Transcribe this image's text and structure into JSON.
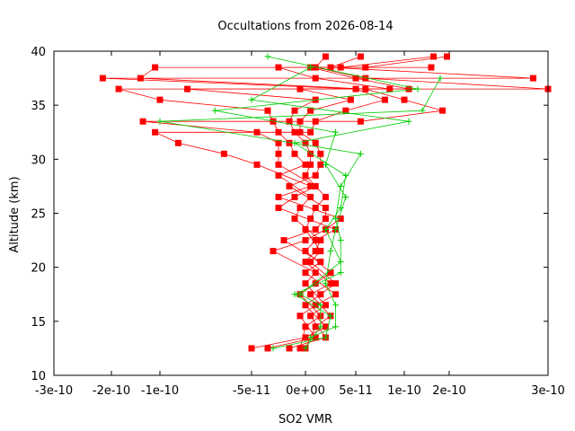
{
  "chart_data": {
    "type": "scatter",
    "title": "Occultations from 2026-08-14",
    "xlabel": "SO2 VMR",
    "ylabel": "Altitude (km)",
    "xlim": [
      -3e-10,
      3e-10
    ],
    "ylim": [
      10,
      40
    ],
    "x_ticks": [
      -3e-10,
      -2e-10,
      -1e-10,
      -5e-11,
      0,
      5e-11,
      1e-10,
      2e-10,
      3e-10
    ],
    "x_tick_labels": [
      "-3e-10",
      "-2e-10",
      "-1e-10",
      "-5e-11",
      "0e+00",
      "5e-11",
      "1e-10",
      "2e-10",
      "3e-10"
    ],
    "y_ticks": [
      10,
      15,
      20,
      25,
      30,
      35,
      40
    ],
    "y_tick_labels": [
      "10",
      "15",
      "20",
      "25",
      "30",
      "35",
      "40"
    ],
    "grid": false,
    "legend": "none",
    "series": [
      {
        "color": "#ff0000",
        "marker": "square",
        "points": [
          [
            -5e-11,
            12.5
          ],
          [
            -3.5e-11,
            12.5
          ],
          [
            -1.5e-11,
            12.5
          ],
          [
            -5e-12,
            12.5
          ],
          [
            0,
            12.5
          ],
          [
            0,
            13.5
          ],
          [
            1e-11,
            13.5
          ],
          [
            2e-11,
            13.5
          ],
          [
            0,
            14.5
          ],
          [
            1e-11,
            14.5
          ],
          [
            2e-11,
            14.5
          ],
          [
            -5e-12,
            15.5
          ],
          [
            5e-12,
            15.5
          ],
          [
            1.5e-11,
            15.5
          ],
          [
            2.5e-11,
            15.5
          ],
          [
            0,
            16.5
          ],
          [
            1e-11,
            16.5
          ],
          [
            2e-11,
            16.5
          ],
          [
            -5e-12,
            17.5
          ],
          [
            5e-12,
            17.5
          ],
          [
            1.5e-11,
            17.5
          ],
          [
            3e-11,
            17.5
          ],
          [
            0,
            18.5
          ],
          [
            1e-11,
            18.5
          ],
          [
            2.5e-11,
            18.5
          ],
          [
            3e-11,
            18.5
          ],
          [
            0,
            19.5
          ],
          [
            1e-11,
            19.5
          ],
          [
            2.5e-11,
            19.5
          ],
          [
            0,
            20.5
          ],
          [
            5e-12,
            20.5
          ],
          [
            1.5e-11,
            20.5
          ],
          [
            -3e-11,
            21.5
          ],
          [
            0,
            21.5
          ],
          [
            1e-11,
            21.5
          ],
          [
            1.5e-11,
            21.5
          ],
          [
            -2e-11,
            22.5
          ],
          [
            0,
            22.5
          ],
          [
            1e-11,
            22.5
          ],
          [
            1.5e-11,
            22.5
          ],
          [
            0,
            23.5
          ],
          [
            1e-11,
            23.5
          ],
          [
            2e-11,
            23.5
          ],
          [
            3e-11,
            23.5
          ],
          [
            -1e-11,
            24.5
          ],
          [
            5e-12,
            24.5
          ],
          [
            2e-11,
            24.5
          ],
          [
            3.5e-11,
            24.5
          ],
          [
            -2.5e-11,
            25.5
          ],
          [
            -5e-12,
            25.5
          ],
          [
            1e-11,
            25.5
          ],
          [
            2e-11,
            25.5
          ],
          [
            -2.5e-11,
            26.5
          ],
          [
            -1e-11,
            26.5
          ],
          [
            5e-12,
            26.5
          ],
          [
            2e-11,
            26.5
          ],
          [
            -1.5e-11,
            27.5
          ],
          [
            5e-12,
            27.5
          ],
          [
            1e-11,
            27.5
          ],
          [
            -2.5e-11,
            28.5
          ],
          [
            0,
            28.5
          ],
          [
            1e-11,
            28.5
          ],
          [
            -4.5e-11,
            29.5
          ],
          [
            -2.5e-11,
            29.5
          ],
          [
            0,
            29.5
          ],
          [
            5e-12,
            29.5
          ],
          [
            1.5e-11,
            29.5
          ],
          [
            -6.5e-11,
            30.5
          ],
          [
            -2.5e-11,
            30.5
          ],
          [
            -1e-11,
            30.5
          ],
          [
            5e-12,
            30.5
          ],
          [
            1.5e-11,
            30.5
          ],
          [
            -9e-11,
            31.5
          ],
          [
            -2.5e-11,
            31.5
          ],
          [
            -1.5e-11,
            31.5
          ],
          [
            0,
            31.5
          ],
          [
            1e-11,
            31.5
          ],
          [
            -1.1e-10,
            32.5
          ],
          [
            -4.5e-11,
            32.5
          ],
          [
            -2.5e-11,
            32.5
          ],
          [
            -1e-11,
            32.5
          ],
          [
            -5e-12,
            32.5
          ],
          [
            5e-12,
            32.5
          ],
          [
            -1.35e-10,
            33.5
          ],
          [
            -3e-11,
            33.5
          ],
          [
            -1.5e-11,
            33.5
          ],
          [
            -5e-12,
            33.5
          ],
          [
            1e-11,
            33.5
          ],
          [
            5.5e-11,
            33.5
          ],
          [
            -3.5e-11,
            34.5
          ],
          [
            -1e-11,
            34.5
          ],
          [
            5e-12,
            34.5
          ],
          [
            4e-11,
            34.5
          ],
          [
            1.85e-10,
            34.5
          ],
          [
            -1e-10,
            35.5
          ],
          [
            1e-11,
            35.5
          ],
          [
            4.5e-11,
            35.5
          ],
          [
            8e-11,
            35.5
          ],
          [
            1e-10,
            35.5
          ],
          [
            -1.85e-10,
            36.5
          ],
          [
            -8.5e-11,
            36.5
          ],
          [
            -5e-12,
            36.5
          ],
          [
            5e-11,
            36.5
          ],
          [
            6e-11,
            36.5
          ],
          [
            8.5e-11,
            36.5
          ],
          [
            1.1e-10,
            36.5
          ],
          [
            3e-10,
            36.5
          ],
          [
            -2.15e-10,
            37.5
          ],
          [
            -1.4e-10,
            37.5
          ],
          [
            1e-11,
            37.5
          ],
          [
            5e-11,
            37.5
          ],
          [
            6e-11,
            37.5
          ],
          [
            2.85e-10,
            37.5
          ],
          [
            -1.1e-10,
            38.5
          ],
          [
            -2.5e-11,
            38.5
          ],
          [
            5e-12,
            38.5
          ],
          [
            1e-11,
            38.5
          ],
          [
            2.5e-11,
            38.5
          ],
          [
            3.5e-11,
            38.5
          ],
          [
            6e-11,
            38.5
          ],
          [
            1.6e-10,
            38.5
          ],
          [
            2e-11,
            39.5
          ],
          [
            5.5e-11,
            39.5
          ],
          [
            1.65e-10,
            39.5
          ],
          [
            1.95e-10,
            39.5
          ]
        ]
      },
      {
        "color": "#00cc00",
        "marker": "plus",
        "points": [
          [
            -3e-11,
            12.5
          ],
          [
            0,
            12.5
          ],
          [
            5e-12,
            13.5
          ],
          [
            2e-11,
            13.5
          ],
          [
            3e-11,
            14.5
          ],
          [
            1.5e-11,
            14.5
          ],
          [
            2.5e-11,
            15.5
          ],
          [
            3e-11,
            16.5
          ],
          [
            1.5e-11,
            16.5
          ],
          [
            -5e-12,
            17.5
          ],
          [
            -1e-11,
            17.5
          ],
          [
            2e-11,
            18.5
          ],
          [
            3.5e-11,
            19.5
          ],
          [
            3.5e-11,
            20.5
          ],
          [
            2.5e-11,
            21.5
          ],
          [
            3.5e-11,
            22.5
          ],
          [
            3e-11,
            23.5
          ],
          [
            2e-11,
            23.5
          ],
          [
            3e-11,
            24.5
          ],
          [
            3.5e-11,
            25.5
          ],
          [
            4e-11,
            26.5
          ],
          [
            3.5e-11,
            27.5
          ],
          [
            4e-11,
            28.5
          ],
          [
            2e-11,
            29.5
          ],
          [
            5.5e-11,
            30.5
          ],
          [
            -1e-11,
            31.5
          ],
          [
            3e-11,
            32.5
          ],
          [
            -1e-10,
            33.5
          ],
          [
            1.1e-10,
            33.5
          ],
          [
            -7e-11,
            34.5
          ],
          [
            1.4e-10,
            34.5
          ],
          [
            -5e-11,
            35.5
          ],
          [
            1.3e-10,
            36.5
          ],
          [
            1.8e-10,
            37.5
          ],
          [
            5e-12,
            38.5
          ],
          [
            -3.5e-11,
            39.5
          ]
        ]
      }
    ]
  }
}
